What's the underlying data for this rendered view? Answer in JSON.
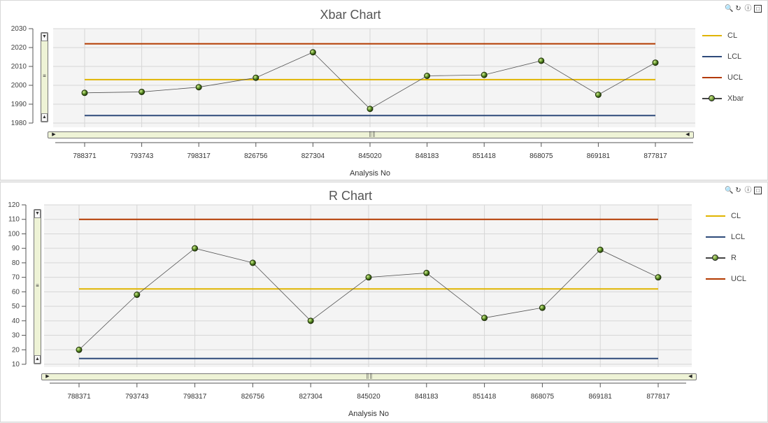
{
  "charts": [
    {
      "id": "xbar",
      "title": "Xbar Chart",
      "xlabel": "Analysis No",
      "legend": [
        {
          "name": "CL",
          "color": "#e0b400",
          "kind": "line"
        },
        {
          "name": "LCL",
          "color": "#2e4a7a",
          "kind": "line"
        },
        {
          "name": "UCL",
          "color": "#b33a00",
          "kind": "line"
        },
        {
          "name": "Xbar",
          "color": "#444444",
          "kind": "marker"
        }
      ]
    },
    {
      "id": "r",
      "title": "R Chart",
      "xlabel": "Analysis No",
      "legend": [
        {
          "name": "CL",
          "color": "#e0b400",
          "kind": "line"
        },
        {
          "name": "LCL",
          "color": "#2e4a7a",
          "kind": "line"
        },
        {
          "name": "R",
          "color": "#444444",
          "kind": "marker"
        },
        {
          "name": "UCL",
          "color": "#b33a00",
          "kind": "line"
        }
      ]
    }
  ],
  "toolbar": {
    "zoom_icon": "zoom-icon",
    "refresh_icon": "refresh-icon",
    "info_icon": "info-icon",
    "maximize_icon": "maximize-icon"
  },
  "chart_data": [
    {
      "type": "line",
      "title": "Xbar Chart",
      "xlabel": "Analysis No",
      "ylabel": "",
      "categories": [
        "788371",
        "793743",
        "798317",
        "826756",
        "827304",
        "845020",
        "848183",
        "851418",
        "868075",
        "869181",
        "877817"
      ],
      "ylim": [
        1980,
        2030
      ],
      "yticks": [
        1980,
        1990,
        2000,
        2010,
        2020,
        2030
      ],
      "grid": true,
      "legend_position": "right",
      "series": [
        {
          "name": "CL",
          "values": [
            2003,
            2003,
            2003,
            2003,
            2003,
            2003,
            2003,
            2003,
            2003,
            2003,
            2003
          ]
        },
        {
          "name": "LCL",
          "values": [
            1984,
            1984,
            1984,
            1984,
            1984,
            1984,
            1984,
            1984,
            1984,
            1984,
            1984
          ]
        },
        {
          "name": "UCL",
          "values": [
            2022,
            2022,
            2022,
            2022,
            2022,
            2022,
            2022,
            2022,
            2022,
            2022,
            2022
          ]
        },
        {
          "name": "Xbar",
          "values": [
            1996,
            1996.5,
            1999,
            2004,
            2017.5,
            1987.5,
            2005,
            2005.5,
            2013,
            1995,
            2012
          ]
        }
      ]
    },
    {
      "type": "line",
      "title": "R Chart",
      "xlabel": "Analysis No",
      "ylabel": "",
      "categories": [
        "788371",
        "793743",
        "798317",
        "826756",
        "827304",
        "845020",
        "848183",
        "851418",
        "868075",
        "869181",
        "877817"
      ],
      "ylim": [
        10,
        120
      ],
      "yticks": [
        10,
        20,
        30,
        40,
        50,
        60,
        70,
        80,
        90,
        100,
        110,
        120
      ],
      "grid": true,
      "legend_position": "right",
      "series": [
        {
          "name": "CL",
          "values": [
            62,
            62,
            62,
            62,
            62,
            62,
            62,
            62,
            62,
            62,
            62
          ]
        },
        {
          "name": "LCL",
          "values": [
            14,
            14,
            14,
            14,
            14,
            14,
            14,
            14,
            14,
            14,
            14
          ]
        },
        {
          "name": "R",
          "values": [
            20,
            58,
            90,
            80,
            40,
            70,
            73,
            42,
            49,
            89,
            70
          ]
        },
        {
          "name": "UCL",
          "values": [
            110,
            110,
            110,
            110,
            110,
            110,
            110,
            110,
            110,
            110,
            110
          ]
        }
      ]
    }
  ]
}
